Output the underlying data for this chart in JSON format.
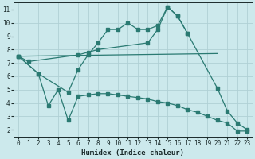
{
  "xlabel": "Humidex (Indice chaleur)",
  "bg_color": "#cce9ec",
  "grid_color": "#b0d0d5",
  "line_color": "#2a7a72",
  "figsize": [
    3.2,
    2.0
  ],
  "dpi": 100,
  "xlim": [
    -0.5,
    23.5
  ],
  "ylim": [
    1.5,
    11.5
  ],
  "yticks": [
    2,
    3,
    4,
    5,
    6,
    7,
    8,
    9,
    10,
    11
  ],
  "xticks": [
    0,
    1,
    2,
    3,
    4,
    5,
    6,
    7,
    8,
    9,
    10,
    11,
    12,
    13,
    14,
    15,
    16,
    17,
    18,
    19,
    20,
    21,
    22,
    23
  ],
  "line1_x": [
    0,
    1,
    6,
    7,
    8,
    13,
    14,
    15,
    16,
    17
  ],
  "line1_y": [
    7.5,
    7.1,
    7.6,
    7.8,
    8.0,
    8.5,
    9.5,
    11.2,
    10.5,
    9.2
  ],
  "line2_x": [
    0,
    20
  ],
  "line2_y": [
    7.5,
    7.7
  ],
  "line3_x": [
    0,
    2,
    5,
    6,
    7,
    8,
    9,
    10,
    11,
    12,
    13,
    14,
    15,
    16,
    17,
    20,
    21,
    22,
    23
  ],
  "line3_y": [
    7.5,
    6.2,
    4.8,
    6.5,
    7.6,
    8.5,
    9.5,
    9.5,
    10.0,
    9.5,
    9.5,
    9.8,
    11.2,
    10.5,
    9.2,
    5.1,
    3.4,
    2.5,
    2.0
  ],
  "line4_x": [
    0,
    2,
    3,
    4,
    5,
    6,
    7,
    8,
    9,
    10,
    11,
    12,
    13,
    14,
    15,
    16,
    17,
    18,
    19,
    20,
    21,
    22,
    23
  ],
  "line4_y": [
    7.5,
    6.2,
    3.8,
    5.0,
    2.7,
    4.5,
    4.6,
    4.7,
    4.7,
    4.6,
    4.5,
    4.4,
    4.3,
    4.1,
    4.0,
    3.8,
    3.5,
    3.3,
    3.0,
    2.7,
    2.5,
    1.9,
    1.9
  ]
}
